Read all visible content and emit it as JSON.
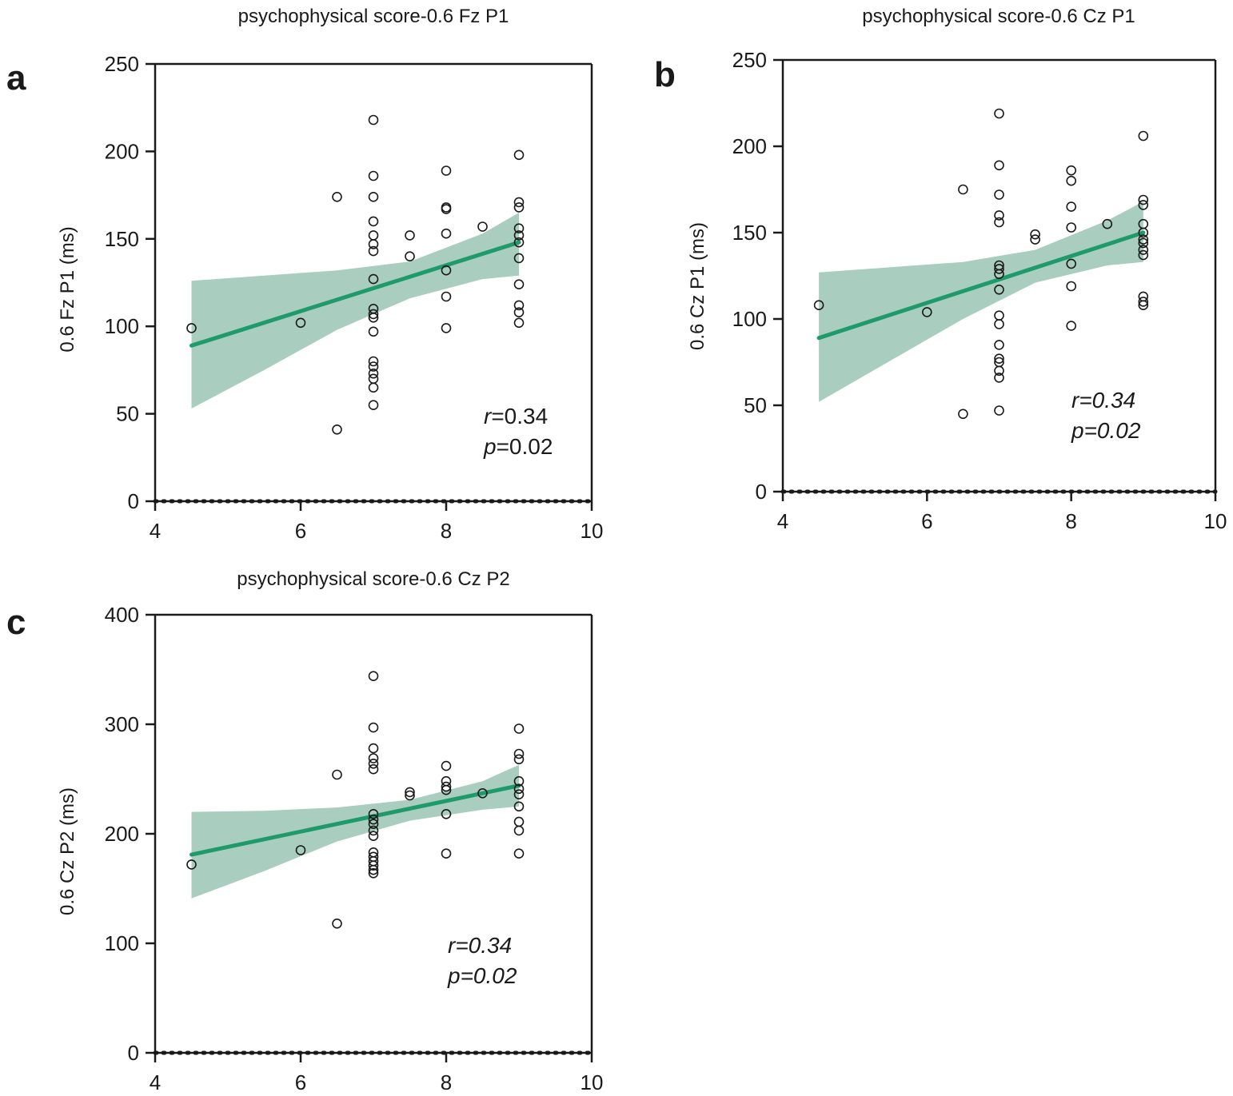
{
  "colors": {
    "accent": "#1f9a6b",
    "band": "#a9cdbf",
    "axis": "#1a1a1a"
  },
  "chart_data": [
    {
      "id": "a",
      "type": "scatter",
      "panel_label": "a",
      "title": "psychophysical score-0.6 Fz P1",
      "xlabel": "",
      "ylabel": "0.6 Fz P1 (ms)",
      "xlim": [
        4,
        10
      ],
      "ylim": [
        0,
        250
      ],
      "xticks": [
        4,
        6,
        8,
        10
      ],
      "yticks": [
        0,
        50,
        100,
        150,
        200,
        250
      ],
      "points": [
        [
          4.5,
          99
        ],
        [
          6,
          102
        ],
        [
          6.5,
          174
        ],
        [
          6.5,
          41
        ],
        [
          7,
          218
        ],
        [
          7,
          186
        ],
        [
          7,
          174
        ],
        [
          7,
          160
        ],
        [
          7,
          152
        ],
        [
          7,
          147
        ],
        [
          7,
          143
        ],
        [
          7,
          127
        ],
        [
          7,
          110
        ],
        [
          7,
          107
        ],
        [
          7,
          105
        ],
        [
          7,
          97
        ],
        [
          7,
          80
        ],
        [
          7,
          77
        ],
        [
          7,
          73
        ],
        [
          7,
          70
        ],
        [
          7,
          65
        ],
        [
          7,
          55
        ],
        [
          7.5,
          152
        ],
        [
          7.5,
          140
        ],
        [
          8,
          189
        ],
        [
          8,
          168
        ],
        [
          8,
          167
        ],
        [
          8,
          153
        ],
        [
          8,
          132
        ],
        [
          8,
          117
        ],
        [
          8,
          99
        ],
        [
          8.5,
          157
        ],
        [
          9,
          198
        ],
        [
          9,
          171
        ],
        [
          9,
          168
        ],
        [
          9,
          156
        ],
        [
          9,
          152
        ],
        [
          9,
          148
        ],
        [
          9,
          139
        ],
        [
          9,
          124
        ],
        [
          9,
          112
        ],
        [
          9,
          108
        ],
        [
          9,
          102
        ]
      ],
      "fit_line": {
        "x": [
          4.5,
          9
        ],
        "y": [
          89,
          148
        ]
      },
      "ci_band": {
        "x": [
          4.5,
          5.5,
          6.5,
          7.5,
          8.5,
          9
        ],
        "upper": [
          126,
          129,
          132,
          137,
          153,
          165
        ],
        "lower": [
          53,
          75,
          98,
          116,
          127,
          129
        ]
      },
      "annotation": {
        "r_label": "r",
        "r_value": "=0.34",
        "p_label": "p",
        "p_value": "=0.02"
      },
      "annotation_style": "label-italic"
    },
    {
      "id": "b",
      "type": "scatter",
      "panel_label": "b",
      "title": "psychophysical score-0.6 Cz P1",
      "xlabel": "",
      "ylabel": "0.6 Cz P1 (ms)",
      "xlim": [
        4,
        10
      ],
      "ylim": [
        0,
        250
      ],
      "xticks": [
        4,
        6,
        8,
        10
      ],
      "yticks": [
        0,
        50,
        100,
        150,
        200,
        250
      ],
      "points": [
        [
          4.5,
          108
        ],
        [
          6,
          104
        ],
        [
          6.5,
          175
        ],
        [
          6.5,
          45
        ],
        [
          7,
          219
        ],
        [
          7,
          189
        ],
        [
          7,
          172
        ],
        [
          7,
          160
        ],
        [
          7,
          156
        ],
        [
          7,
          131
        ],
        [
          7,
          129
        ],
        [
          7,
          126
        ],
        [
          7,
          117
        ],
        [
          7,
          102
        ],
        [
          7,
          97
        ],
        [
          7,
          85
        ],
        [
          7,
          77
        ],
        [
          7,
          75
        ],
        [
          7,
          70
        ],
        [
          7,
          66
        ],
        [
          7,
          47
        ],
        [
          7.5,
          149
        ],
        [
          7.5,
          146
        ],
        [
          8,
          186
        ],
        [
          8,
          180
        ],
        [
          8,
          165
        ],
        [
          8,
          153
        ],
        [
          8,
          132
        ],
        [
          8,
          119
        ],
        [
          8,
          96
        ],
        [
          8.5,
          155
        ],
        [
          9,
          206
        ],
        [
          9,
          169
        ],
        [
          9,
          166
        ],
        [
          9,
          155
        ],
        [
          9,
          150
        ],
        [
          9,
          146
        ],
        [
          9,
          144
        ],
        [
          9,
          140
        ],
        [
          9,
          137
        ],
        [
          9,
          113
        ],
        [
          9,
          110
        ],
        [
          9,
          108
        ]
      ],
      "fit_line": {
        "x": [
          4.5,
          9
        ],
        "y": [
          89,
          150
        ]
      },
      "ci_band": {
        "x": [
          4.5,
          5.5,
          6.5,
          7.5,
          8.5,
          9
        ],
        "upper": [
          127,
          130,
          133,
          140,
          157,
          168
        ],
        "lower": [
          52,
          76,
          100,
          121,
          131,
          133
        ]
      },
      "annotation": {
        "r_label": "r",
        "r_value": "=0.34",
        "p_label": "p",
        "p_value": "=0.02"
      },
      "annotation_style": "all-italic"
    },
    {
      "id": "c",
      "type": "scatter",
      "panel_label": "c",
      "title": "psychophysical score-0.6 Cz P2",
      "xlabel": "",
      "ylabel": "0.6 Cz P2 (ms)",
      "xlim": [
        4,
        10
      ],
      "ylim": [
        0,
        400
      ],
      "xticks": [
        4,
        6,
        8,
        10
      ],
      "yticks": [
        0,
        100,
        200,
        300,
        400
      ],
      "points": [
        [
          4.5,
          172
        ],
        [
          6,
          185
        ],
        [
          6.5,
          254
        ],
        [
          6.5,
          118
        ],
        [
          7,
          344
        ],
        [
          7,
          297
        ],
        [
          7,
          278
        ],
        [
          7,
          269
        ],
        [
          7,
          264
        ],
        [
          7,
          259
        ],
        [
          7,
          218
        ],
        [
          7,
          213
        ],
        [
          7,
          209
        ],
        [
          7,
          203
        ],
        [
          7,
          198
        ],
        [
          7,
          183
        ],
        [
          7,
          179
        ],
        [
          7,
          175
        ],
        [
          7,
          171
        ],
        [
          7,
          167
        ],
        [
          7,
          164
        ],
        [
          7.5,
          238
        ],
        [
          7.5,
          235
        ],
        [
          8,
          262
        ],
        [
          8,
          248
        ],
        [
          8,
          243
        ],
        [
          8,
          240
        ],
        [
          8,
          218
        ],
        [
          8,
          182
        ],
        [
          8.5,
          237
        ],
        [
          9,
          296
        ],
        [
          9,
          273
        ],
        [
          9,
          268
        ],
        [
          9,
          248
        ],
        [
          9,
          241
        ],
        [
          9,
          236
        ],
        [
          9,
          225
        ],
        [
          9,
          211
        ],
        [
          9,
          203
        ],
        [
          9,
          182
        ]
      ],
      "fit_line": {
        "x": [
          4.5,
          9
        ],
        "y": [
          181,
          244
        ]
      },
      "ci_band": {
        "x": [
          4.5,
          5.5,
          6.5,
          7.5,
          8.5,
          9
        ],
        "upper": [
          220,
          221,
          224,
          231,
          248,
          263
        ],
        "lower": [
          141,
          166,
          193,
          212,
          222,
          225
        ]
      },
      "annotation": {
        "r_label": "r",
        "r_value": "=0.34",
        "p_label": "p",
        "p_value": "=0.02"
      },
      "annotation_style": "all-italic"
    }
  ]
}
